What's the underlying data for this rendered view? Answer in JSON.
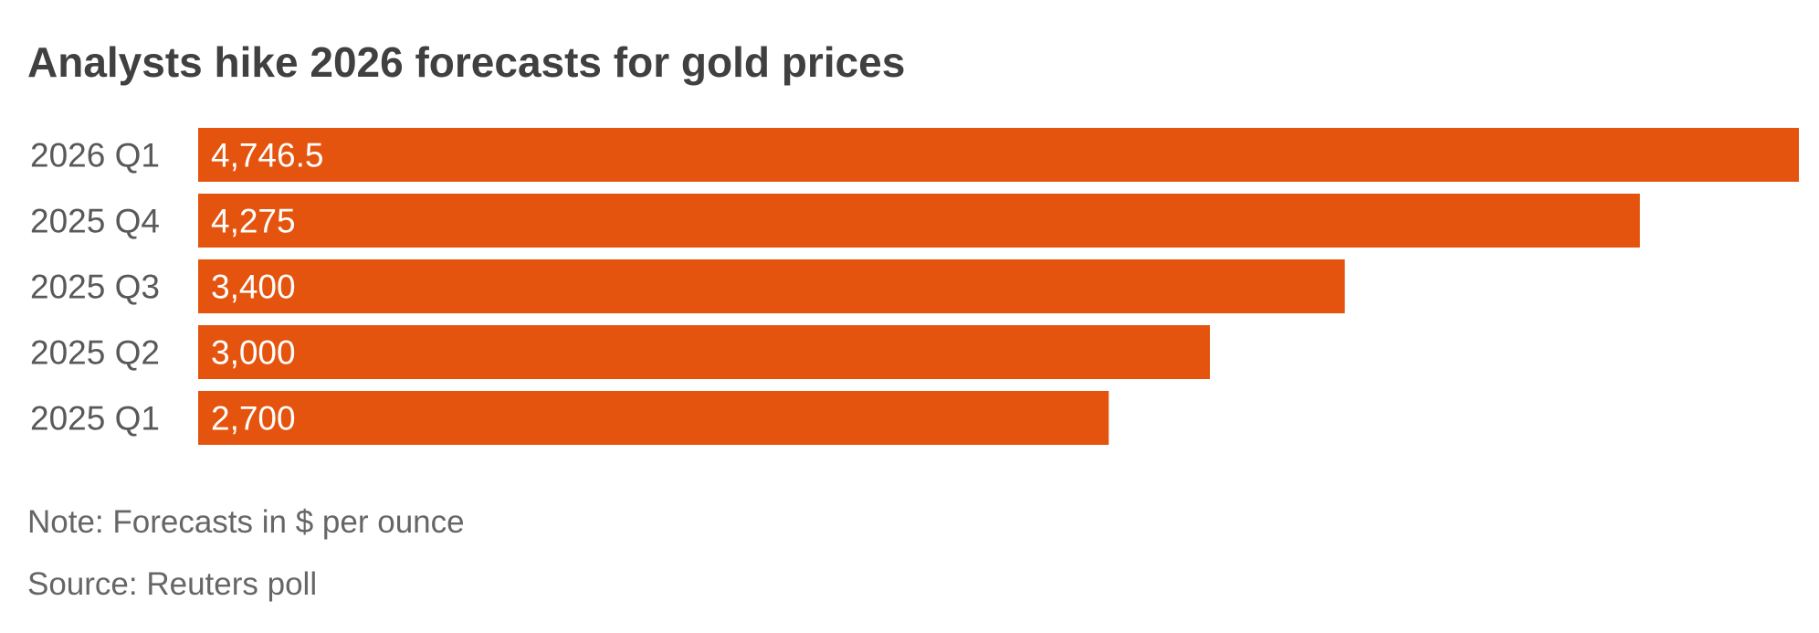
{
  "chart_data": {
    "type": "bar",
    "orientation": "horizontal",
    "title": "Analysts hike 2026 forecasts for gold prices",
    "categories": [
      "2026 Q1",
      "2025 Q4",
      "2025 Q3",
      "2025 Q2",
      "2025 Q1"
    ],
    "values": [
      4746.5,
      4275,
      3400,
      3000,
      2700
    ],
    "value_labels": [
      "4,746.5",
      "4,275",
      "3,400",
      "3,000",
      "2,700"
    ],
    "xlabel": "",
    "ylabel": "",
    "xlim": [
      0,
      4746.5
    ],
    "grid": false,
    "legend": "none",
    "bar_color": "#E5540E"
  },
  "note": "Note: Forecasts in $ per ounce",
  "source": "Source: Reuters poll"
}
